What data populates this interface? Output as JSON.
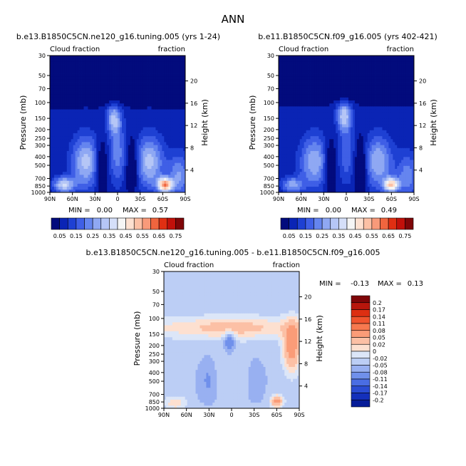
{
  "chart_data": {
    "type": "contour",
    "main_title": "ANN",
    "panels": [
      {
        "title": "b.e13.B1850C5CN.ne120_g16.tuning.005 (yrs 1-24)",
        "left_label": "Cloud fraction",
        "right_label": "fraction",
        "xlabel": "",
        "ylabel": "Pressure (mb)",
        "y2label": "Height (km)",
        "x_ticks": [
          "90N",
          "60N",
          "30N",
          "0",
          "30S",
          "60S",
          "90S"
        ],
        "pressure_ticks": [
          30,
          50,
          70,
          100,
          150,
          200,
          250,
          300,
          400,
          500,
          700,
          850,
          1000
        ],
        "height_ticks": [
          4,
          8,
          12,
          16,
          20
        ],
        "stats": {
          "min_label": "MIN =",
          "min": "0.00",
          "max_label": "MAX =",
          "max": "0.57"
        }
      },
      {
        "title": "b.e11.B1850C5CN.f09_g16.005 (yrs 402-421)",
        "left_label": "Cloud fraction",
        "right_label": "fraction",
        "xlabel": "",
        "ylabel": "Pressure (mb)",
        "y2label": "Height (km)",
        "x_ticks": [
          "90N",
          "60N",
          "30N",
          "0",
          "30S",
          "60S",
          "90S"
        ],
        "pressure_ticks": [
          30,
          50,
          70,
          100,
          150,
          200,
          250,
          300,
          400,
          500,
          700,
          850,
          1000
        ],
        "height_ticks": [
          4,
          8,
          12,
          16,
          20
        ],
        "stats": {
          "min_label": "MIN =",
          "min": "0.00",
          "max_label": "MAX =",
          "max": "0.49"
        }
      },
      {
        "title": "b.e13.B1850C5CN.ne120_g16.tuning.005 - b.e11.B1850C5CN.f09_g16.005",
        "left_label": "Cloud fraction",
        "right_label": "fraction",
        "xlabel": "",
        "ylabel": "Pressure (mb)",
        "y2label": "Height (km)",
        "x_ticks": [
          "90N",
          "60N",
          "30N",
          "0",
          "30S",
          "60S",
          "90S"
        ],
        "pressure_ticks": [
          30,
          50,
          70,
          100,
          150,
          200,
          250,
          300,
          400,
          500,
          700,
          850,
          1000
        ],
        "height_ticks": [
          4,
          8,
          12,
          16,
          20
        ],
        "stats": {
          "min_label": "MIN =",
          "min": "-0.13",
          "max_label": "MAX =",
          "max": "0.13"
        }
      }
    ],
    "colorbar_abs": {
      "labels": [
        "0.05",
        "0.15",
        "0.25",
        "0.35",
        "0.45",
        "0.55",
        "0.65",
        "0.75"
      ],
      "levels": [
        0.05,
        0.1,
        0.15,
        0.2,
        0.25,
        0.3,
        0.35,
        0.4,
        0.45,
        0.5,
        0.55,
        0.6,
        0.65,
        0.7,
        0.75
      ],
      "colors": [
        "#020b7d",
        "#0a24b5",
        "#1e40d3",
        "#3f5fe6",
        "#6585ef",
        "#8fa8f3",
        "#b5c6f6",
        "#d5dff9",
        "#f5f5f5",
        "#fde0d0",
        "#fcc0a5",
        "#f89a7a",
        "#f0653e",
        "#e02f12",
        "#c1100a",
        "#7f0608"
      ]
    },
    "colorbar_diff": {
      "labels": [
        "0.2",
        "0.17",
        "0.14",
        "0.11",
        "0.08",
        "0.05",
        "0.02",
        "0",
        "-0.02",
        "-0.05",
        "-0.08",
        "-0.11",
        "-0.14",
        "-0.17",
        "-0.2"
      ],
      "colors": [
        "#7f0608",
        "#b8160c",
        "#dd2f12",
        "#f0542e",
        "#f7794f",
        "#fa9c78",
        "#fcc0a5",
        "#fde0d0",
        "#dce6f8",
        "#bccef5",
        "#98b0f1",
        "#7090eb",
        "#4a6de3",
        "#2b4cd3",
        "#1430bb",
        "#061c98"
      ]
    },
    "fields": {
      "model1_max": 0.57,
      "model2_max": 0.49,
      "diff_range": [
        -0.13,
        0.13
      ]
    }
  }
}
